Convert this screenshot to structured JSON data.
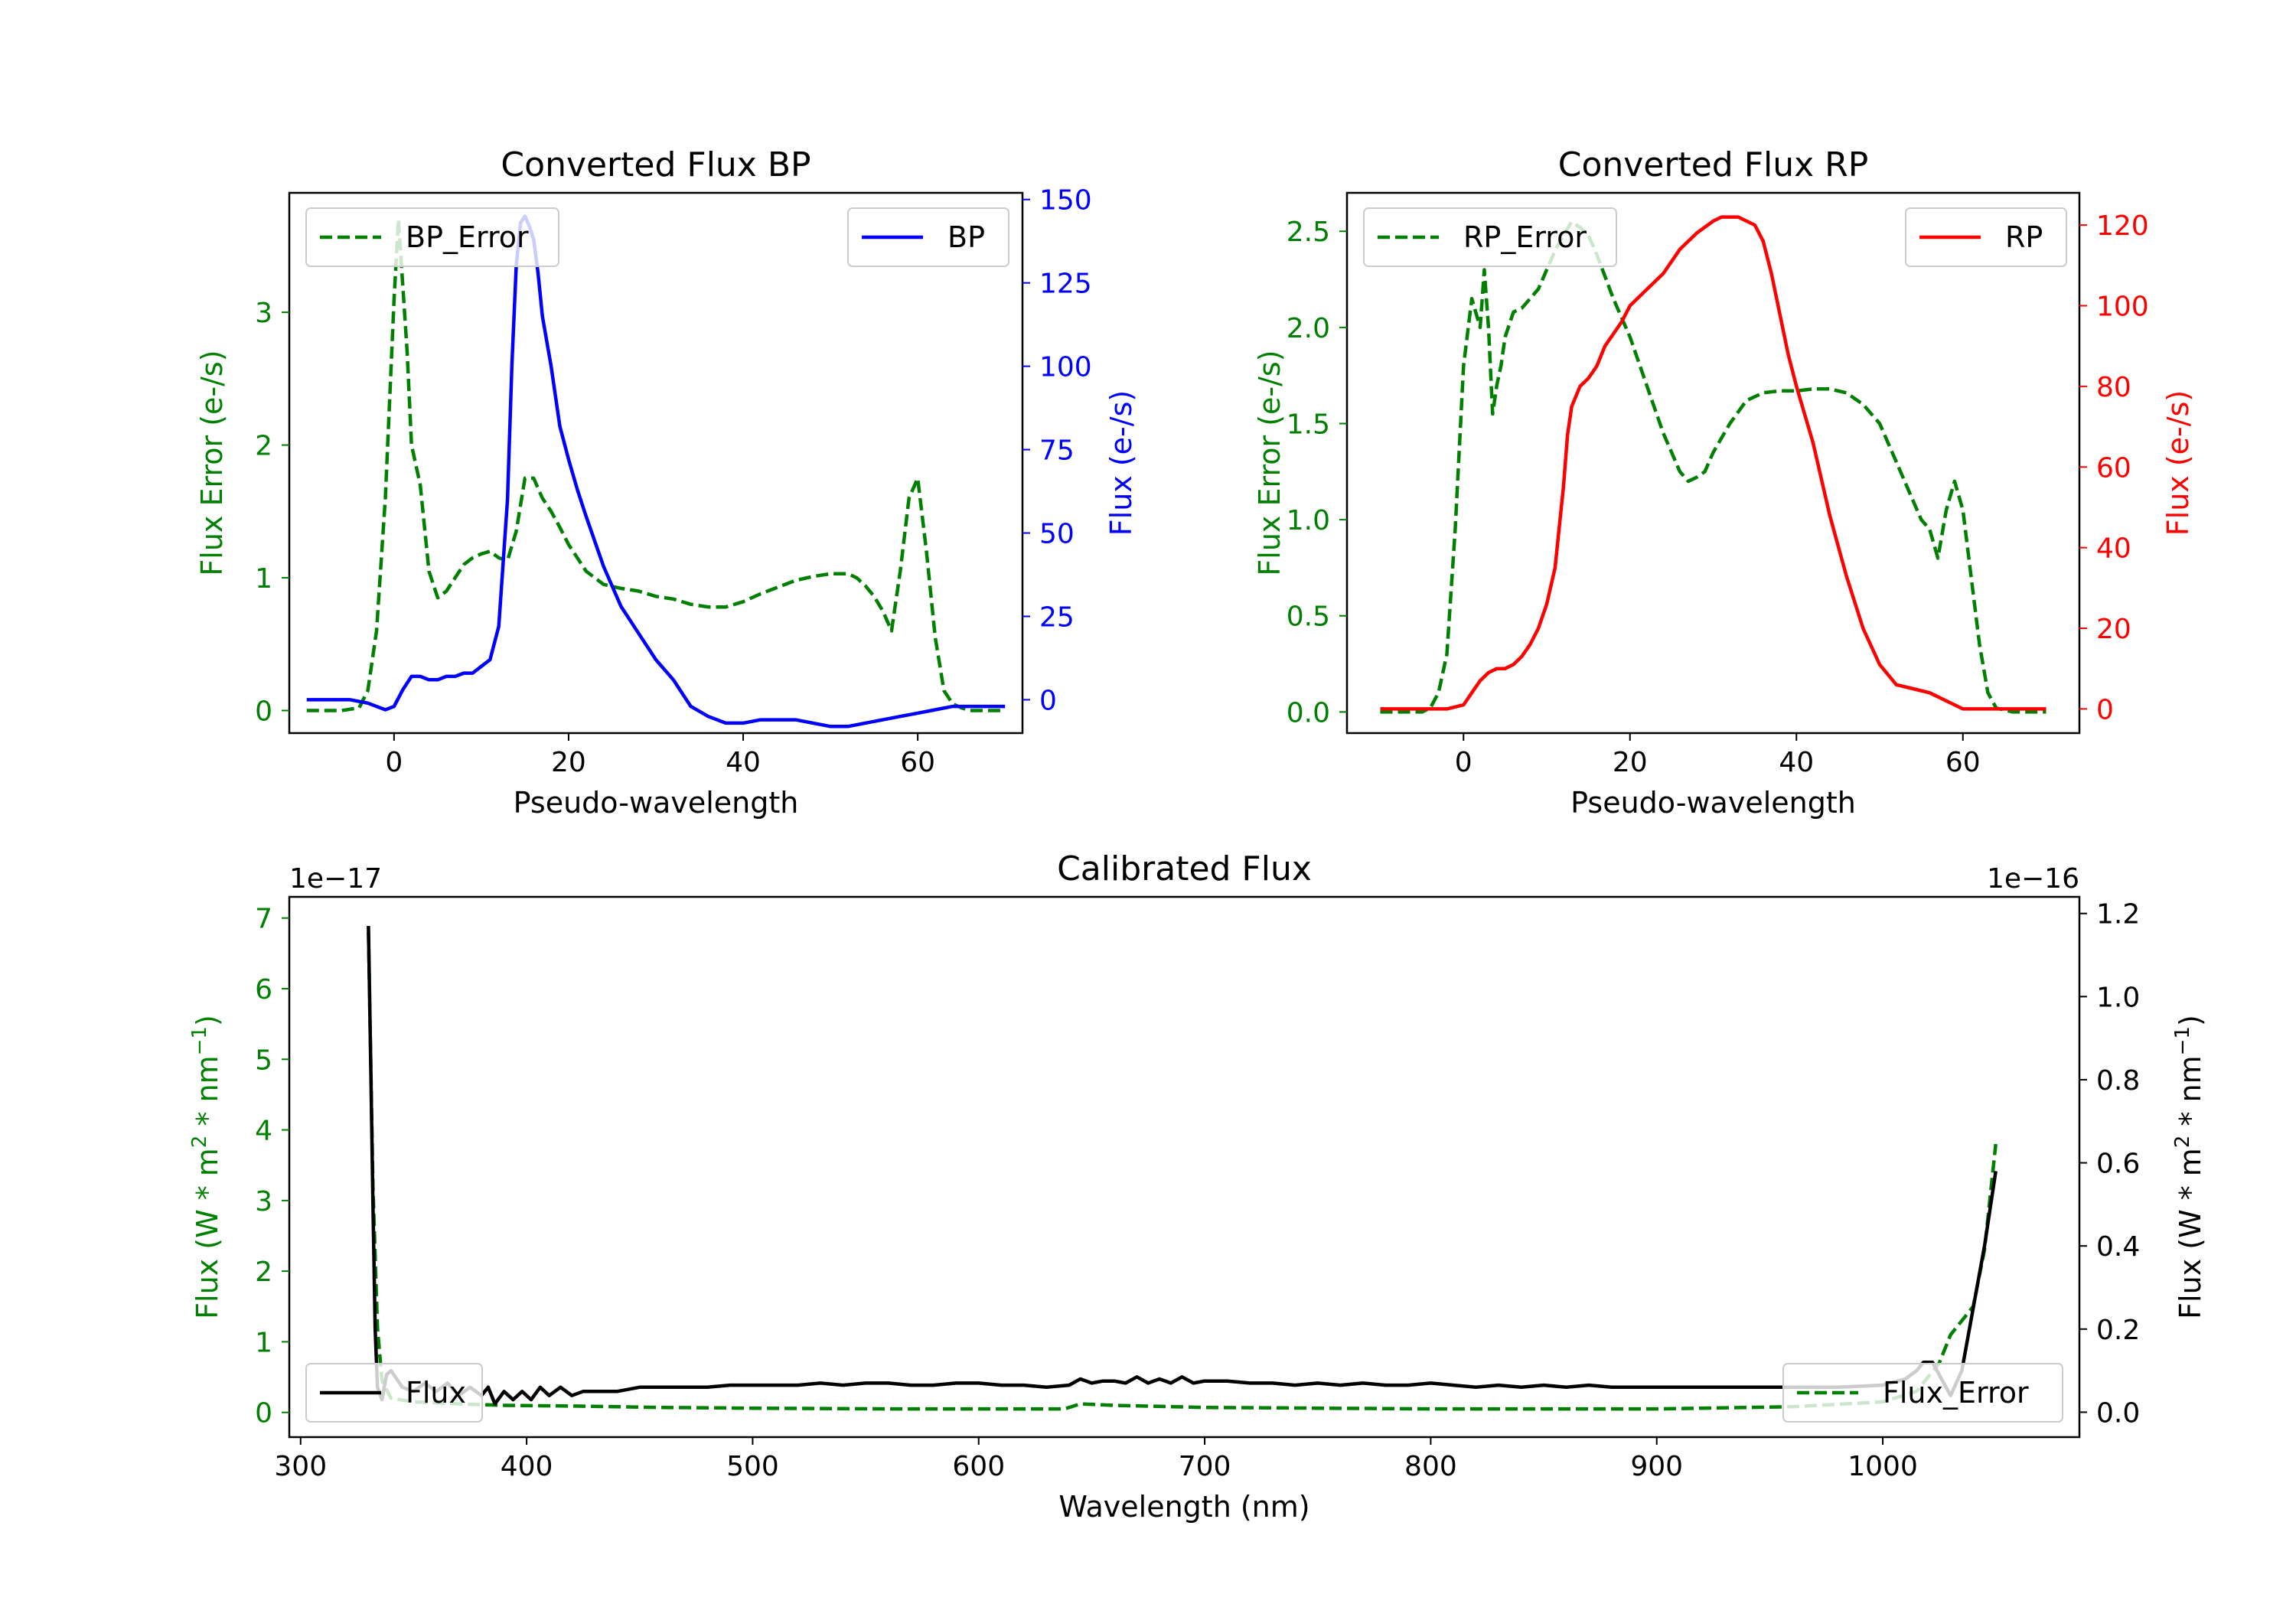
{
  "colors": {
    "error": "#008000",
    "bp": "#0000ff",
    "rp": "#ff0000",
    "flux": "#000000",
    "axis": "#000000"
  },
  "chart_data": [
    {
      "type": "line",
      "title": "Converted Flux BP",
      "xlabel": "Pseudo-wavelength",
      "ylabel_left": "Flux Error (e-/s)",
      "ylabel_right": "Flux (e-/s)",
      "xlim": [
        -12,
        72
      ],
      "ylim_left": [
        -0.17,
        3.9
      ],
      "ylim_right": [
        -10,
        152
      ],
      "xticks": [
        0,
        20,
        40,
        60
      ],
      "xtick_labels": [
        "0",
        "20",
        "40",
        "60"
      ],
      "yticks_left": [
        0,
        1,
        2,
        3
      ],
      "ytick_labels_left": [
        "0",
        "1",
        "2",
        "3"
      ],
      "yticks_right": [
        0,
        25,
        50,
        75,
        100,
        125,
        150
      ],
      "ytick_labels_right": [
        "0",
        "25",
        "50",
        "75",
        "100",
        "125",
        "150"
      ],
      "legend": [
        {
          "label": "BP_Error",
          "position": "top-left"
        },
        {
          "label": "BP",
          "position": "top-right"
        }
      ],
      "series": [
        {
          "name": "BP_Error",
          "axis": "left",
          "style": "dashed",
          "x": [
            -10,
            -6,
            -4,
            -3,
            -2,
            -1,
            0,
            0.5,
            1,
            1.5,
            2,
            3,
            4,
            5,
            6,
            7,
            8,
            9,
            10,
            11,
            12,
            13,
            14,
            15,
            16,
            17,
            18,
            19,
            20,
            22,
            24,
            26,
            28,
            30,
            32,
            34,
            36,
            38,
            40,
            42,
            44,
            46,
            48,
            50,
            52,
            53,
            54,
            55,
            56,
            57,
            58,
            59,
            60,
            61,
            62,
            63,
            64,
            65,
            66,
            68,
            70
          ],
          "y": [
            0,
            0,
            0.02,
            0.15,
            0.6,
            1.6,
            3.1,
            3.7,
            3.2,
            2.7,
            2.0,
            1.7,
            1.05,
            0.85,
            0.9,
            1.0,
            1.1,
            1.15,
            1.18,
            1.2,
            1.15,
            1.13,
            1.35,
            1.75,
            1.75,
            1.6,
            1.5,
            1.38,
            1.25,
            1.05,
            0.95,
            0.92,
            0.9,
            0.86,
            0.84,
            0.8,
            0.78,
            0.78,
            0.82,
            0.88,
            0.93,
            0.98,
            1.01,
            1.03,
            1.03,
            1.0,
            0.94,
            0.86,
            0.75,
            0.6,
            1.05,
            1.6,
            1.75,
            1.2,
            0.55,
            0.15,
            0.05,
            0.02,
            0,
            0,
            0
          ]
        },
        {
          "name": "BP",
          "axis": "right",
          "style": "solid",
          "x": [
            -10,
            -5,
            -3,
            -1,
            0,
            1,
            2,
            3,
            4,
            5,
            6,
            7,
            8,
            9,
            10,
            11,
            12,
            13,
            13.5,
            14,
            14.5,
            15,
            15.5,
            16,
            16.5,
            17,
            18,
            19,
            20,
            21,
            22,
            24,
            26,
            28,
            30,
            32,
            34,
            36,
            38,
            40,
            42,
            44,
            46,
            48,
            50,
            52,
            54,
            56,
            58,
            60,
            62,
            64,
            66,
            68,
            70
          ],
          "y": [
            0,
            0,
            -1,
            -3,
            -2,
            3,
            7,
            7,
            6,
            6,
            7,
            7,
            8,
            8,
            10,
            12,
            22,
            60,
            100,
            130,
            143,
            145,
            142,
            138,
            128,
            115,
            100,
            82,
            72,
            63,
            55,
            40,
            28,
            20,
            12,
            6,
            -2,
            -5,
            -7,
            -7,
            -6,
            -6,
            -6,
            -7,
            -8,
            -8,
            -7,
            -6,
            -5,
            -4,
            -3,
            -2,
            -2,
            -2,
            -2
          ]
        }
      ]
    },
    {
      "type": "line",
      "title": "Converted Flux RP",
      "xlabel": "Pseudo-wavelength",
      "ylabel_left": "Flux Error (e-/s)",
      "ylabel_right": "Flux (e-/s)",
      "xlim": [
        -14,
        74
      ],
      "ylim_left": [
        -0.11,
        2.7
      ],
      "ylim_right": [
        -6,
        128
      ],
      "xticks": [
        0,
        20,
        40,
        60
      ],
      "xtick_labels": [
        "0",
        "20",
        "40",
        "60"
      ],
      "yticks_left": [
        0,
        0.5,
        1,
        1.5,
        2,
        2.5
      ],
      "ytick_labels_left": [
        "0.0",
        "0.5",
        "1.0",
        "1.5",
        "2.0",
        "2.5"
      ],
      "yticks_right": [
        0,
        20,
        40,
        60,
        80,
        100,
        120
      ],
      "ytick_labels_right": [
        "0",
        "20",
        "40",
        "60",
        "80",
        "100",
        "120"
      ],
      "legend": [
        {
          "label": "RP_Error",
          "position": "top-left"
        },
        {
          "label": "RP",
          "position": "top-right"
        }
      ],
      "series": [
        {
          "name": "RP_Error",
          "axis": "left",
          "style": "dashed",
          "x": [
            -10,
            -5,
            -4,
            -3,
            -2,
            -1,
            0,
            1,
            2,
            2.5,
            3,
            3.5,
            4,
            4.5,
            5,
            6,
            7,
            8,
            9,
            10,
            11,
            12,
            13,
            14,
            15,
            16,
            18,
            20,
            22,
            24,
            26,
            27,
            28,
            29,
            30,
            32,
            34,
            36,
            38,
            40,
            42,
            44,
            46,
            48,
            50,
            52,
            54,
            55,
            56,
            57,
            58,
            59,
            60,
            61,
            62,
            63,
            64,
            66,
            68,
            70
          ],
          "y": [
            0,
            0,
            0.02,
            0.1,
            0.3,
            0.95,
            1.8,
            2.15,
            2.0,
            2.3,
            2.0,
            1.55,
            1.7,
            1.8,
            1.95,
            2.08,
            2.1,
            2.15,
            2.2,
            2.3,
            2.4,
            2.48,
            2.55,
            2.52,
            2.48,
            2.38,
            2.15,
            1.95,
            1.7,
            1.45,
            1.25,
            1.2,
            1.22,
            1.25,
            1.35,
            1.5,
            1.62,
            1.66,
            1.67,
            1.67,
            1.68,
            1.68,
            1.66,
            1.6,
            1.5,
            1.3,
            1.1,
            1.0,
            0.95,
            0.8,
            1.05,
            1.2,
            1.05,
            0.7,
            0.35,
            0.1,
            0.02,
            0,
            0,
            0
          ]
        },
        {
          "name": "RP",
          "axis": "right",
          "style": "solid",
          "x": [
            -10,
            -4,
            -2,
            0,
            1,
            2,
            3,
            4,
            5,
            6,
            7,
            8,
            9,
            10,
            11,
            11.5,
            12,
            12.5,
            13,
            14,
            15,
            16,
            17,
            18,
            19,
            20,
            21,
            22,
            24,
            26,
            28,
            30,
            31,
            32,
            33,
            34,
            35,
            36,
            37,
            38,
            39,
            40,
            42,
            44,
            46,
            48,
            50,
            52,
            54,
            56,
            58,
            60,
            62,
            64,
            66,
            68,
            70
          ],
          "y": [
            0,
            0,
            0,
            1,
            4,
            7,
            9,
            10,
            10,
            11,
            13,
            16,
            20,
            26,
            35,
            45,
            55,
            68,
            75,
            80,
            82,
            85,
            90,
            93,
            96,
            100,
            102,
            104,
            108,
            114,
            118,
            121,
            122,
            122,
            122,
            121,
            120,
            116,
            108,
            98,
            88,
            80,
            66,
            48,
            33,
            20,
            11,
            6,
            5,
            4,
            2,
            0,
            0,
            0,
            0,
            0,
            0
          ]
        }
      ]
    },
    {
      "type": "line",
      "title": "Calibrated Flux",
      "xlabel": "Wavelength (nm)",
      "ylabel_left": "Flux (W * m$^2$ * nm$^{-1}$)",
      "ylabel_right": "Flux (W * m$^2$ * nm$^{-1}$)",
      "offset_left": "1e−17",
      "offset_right": "1e−16",
      "xlim": [
        295,
        1087
      ],
      "ylim_left": [
        -0.35,
        7.3
      ],
      "ylim_right": [
        -0.06,
        1.24
      ],
      "xticks": [
        300,
        400,
        500,
        600,
        700,
        800,
        900,
        1000
      ],
      "xtick_labels": [
        "300",
        "400",
        "500",
        "600",
        "700",
        "800",
        "900",
        "1000"
      ],
      "yticks_left": [
        0,
        1,
        2,
        3,
        4,
        5,
        6,
        7
      ],
      "ytick_labels_left": [
        "0",
        "1",
        "2",
        "3",
        "4",
        "5",
        "6",
        "7"
      ],
      "yticks_right": [
        0,
        0.2,
        0.4,
        0.6,
        0.8,
        1.0,
        1.2
      ],
      "ytick_labels_right": [
        "0.0",
        "0.2",
        "0.4",
        "0.6",
        "0.8",
        "1.0",
        "1.2"
      ],
      "legend": [
        {
          "label": "Flux",
          "position": "lower-left"
        },
        {
          "label": "Flux_Error",
          "position": "lower-right"
        }
      ],
      "series": [
        {
          "name": "Flux_Error",
          "axis": "left",
          "style": "dashed",
          "x": [
            330,
            332,
            334,
            336,
            340,
            350,
            370,
            390,
            420,
            460,
            500,
            560,
            600,
            638,
            645,
            660,
            700,
            800,
            900,
            960,
            1000,
            1015,
            1025,
            1030,
            1040,
            1045,
            1050
          ],
          "y": [
            6.8,
            3.2,
            1.2,
            0.45,
            0.2,
            0.15,
            0.12,
            0.1,
            0.09,
            0.07,
            0.06,
            0.05,
            0.05,
            0.05,
            0.12,
            0.1,
            0.07,
            0.05,
            0.05,
            0.08,
            0.15,
            0.3,
            0.7,
            1.1,
            1.5,
            2.3,
            3.8
          ]
        },
        {
          "name": "Flux",
          "axis": "right",
          "style": "solid",
          "x": [
            330,
            331,
            332,
            333,
            334,
            336,
            338,
            340,
            345,
            350,
            355,
            360,
            365,
            370,
            375,
            380,
            383,
            386,
            390,
            394,
            398,
            402,
            406,
            410,
            415,
            420,
            425,
            430,
            440,
            450,
            460,
            470,
            480,
            490,
            500,
            510,
            520,
            530,
            540,
            550,
            560,
            570,
            580,
            590,
            600,
            610,
            620,
            630,
            640,
            645,
            650,
            655,
            660,
            665,
            670,
            675,
            680,
            685,
            690,
            695,
            700,
            710,
            720,
            730,
            740,
            750,
            760,
            770,
            780,
            790,
            800,
            810,
            820,
            830,
            840,
            850,
            860,
            870,
            880,
            890,
            900,
            920,
            940,
            960,
            980,
            1000,
            1010,
            1015,
            1018,
            1022,
            1026,
            1030,
            1035,
            1040,
            1045,
            1050
          ],
          "y": [
            1.17,
            0.85,
            0.5,
            0.2,
            0.06,
            0.03,
            0.09,
            0.1,
            0.06,
            0.05,
            0.07,
            0.05,
            0.07,
            0.04,
            0.06,
            0.04,
            0.06,
            0.02,
            0.05,
            0.03,
            0.05,
            0.03,
            0.06,
            0.04,
            0.06,
            0.04,
            0.05,
            0.05,
            0.05,
            0.06,
            0.06,
            0.06,
            0.06,
            0.065,
            0.065,
            0.065,
            0.065,
            0.07,
            0.065,
            0.07,
            0.07,
            0.065,
            0.065,
            0.07,
            0.07,
            0.065,
            0.065,
            0.06,
            0.065,
            0.08,
            0.07,
            0.075,
            0.075,
            0.07,
            0.085,
            0.07,
            0.08,
            0.07,
            0.085,
            0.07,
            0.075,
            0.075,
            0.07,
            0.07,
            0.065,
            0.07,
            0.065,
            0.07,
            0.065,
            0.065,
            0.07,
            0.065,
            0.06,
            0.065,
            0.06,
            0.065,
            0.06,
            0.065,
            0.06,
            0.06,
            0.06,
            0.06,
            0.06,
            0.06,
            0.06,
            0.065,
            0.08,
            0.1,
            0.12,
            0.12,
            0.08,
            0.04,
            0.1,
            0.25,
            0.4,
            0.58
          ]
        }
      ]
    }
  ]
}
